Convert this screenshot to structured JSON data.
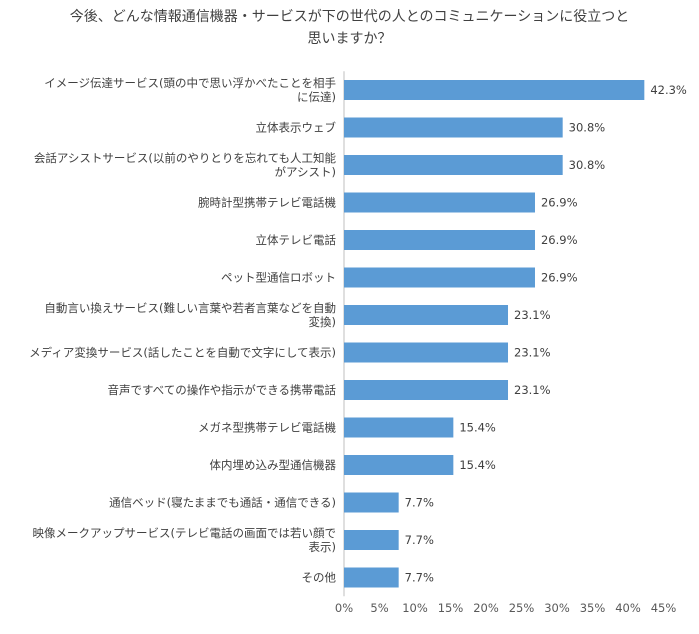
{
  "chart_data": {
    "type": "bar",
    "orientation": "horizontal",
    "title_lines": [
      "今後、どんな情報通信機器・サービスが下の世代の人とのコミュニケーションに役立つと",
      "思いますか？"
    ],
    "xlabel": "",
    "ylabel": "",
    "xlim": [
      0,
      45
    ],
    "x_ticks": [
      "0%",
      "5%",
      "10%",
      "15%",
      "20%",
      "25%",
      "30%",
      "35%",
      "40%",
      "45%"
    ],
    "grid": false,
    "bar_color": "#5b9bd5",
    "categories": [
      [
        "イメージ伝達サービス(頭の中で思い浮かべたことを相手",
        "に伝達)"
      ],
      [
        "立体表示ウェブ"
      ],
      [
        "会話アシストサービス(以前のやりとりを忘れても人工知能",
        "がアシスト)"
      ],
      [
        "腕時計型携帯テレビ電話機"
      ],
      [
        "立体テレビ電話"
      ],
      [
        "ペット型通信ロボット"
      ],
      [
        "自動言い換えサービス(難しい言葉や若者言葉などを自動",
        "変換)"
      ],
      [
        "メディア変換サービス(話したことを自動で文字にして表示)"
      ],
      [
        "音声ですべての操作や指示ができる携帯電話"
      ],
      [
        "メガネ型携帯テレビ電話機"
      ],
      [
        "体内埋め込み型通信機器"
      ],
      [
        "通信ベッド(寝たままでも通話・通信できる)"
      ],
      [
        "映像メークアップサービス(テレビ電話の画面では若い顔で",
        "表示)"
      ],
      [
        "その他"
      ]
    ],
    "values": [
      42.3,
      30.8,
      30.8,
      26.9,
      26.9,
      26.9,
      23.1,
      23.1,
      23.1,
      15.4,
      15.4,
      7.7,
      7.7,
      7.7
    ],
    "value_labels": [
      "42.3%",
      "30.8%",
      "30.8%",
      "26.9%",
      "26.9%",
      "26.9%",
      "23.1%",
      "23.1%",
      "23.1%",
      "15.4%",
      "15.4%",
      "7.7%",
      "7.7%",
      "7.7%"
    ]
  }
}
